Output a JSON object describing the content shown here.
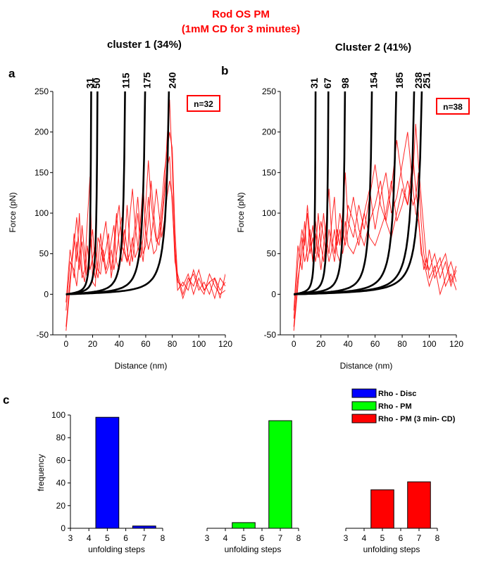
{
  "figure": {
    "title_line1": "Rod OS PM",
    "title_line2": "(1mM CD for 3 minutes)",
    "colors": {
      "trace": "#ff0000",
      "fit": "#000000",
      "disc": "#0000ff",
      "pm": "#00ff00",
      "pm_cd": "#ff0000"
    }
  },
  "chart_data": [
    {
      "id": "a",
      "type": "line",
      "panel_letter": "a",
      "title": "cluster 1 (34%)",
      "xlabel": "Distance (nm)",
      "ylabel": "Force (pN)",
      "xlim": [
        -10,
        120
      ],
      "ylim": [
        -50,
        250
      ],
      "xticks": [
        0,
        20,
        40,
        60,
        80,
        100,
        120
      ],
      "yticks": [
        -50,
        0,
        50,
        100,
        150,
        200,
        250
      ],
      "n_label": "n=32",
      "contour_lengths_aa": [
        31,
        50,
        115,
        175,
        240
      ],
      "contour_labels": [
        "31",
        "50",
        "115",
        "175",
        "240"
      ],
      "wlc_max_extension_nm": [
        20,
        25,
        47,
        63,
        82
      ],
      "series": [
        {
          "x": [
            0,
            3,
            6,
            8,
            10,
            12,
            14,
            16,
            18,
            20,
            22,
            24,
            26,
            28,
            30,
            32,
            34,
            36,
            38,
            40,
            42,
            44,
            46,
            48,
            50,
            52,
            54,
            56,
            58,
            60,
            62,
            64,
            66,
            68,
            70,
            72,
            74,
            76,
            78,
            80,
            82,
            84,
            88,
            92,
            96,
            100,
            104,
            108,
            112,
            116,
            120
          ],
          "y": [
            -40,
            20,
            60,
            95,
            55,
            20,
            30,
            90,
            145,
            15,
            10,
            70,
            60,
            40,
            55,
            75,
            20,
            45,
            90,
            110,
            60,
            50,
            40,
            95,
            130,
            85,
            60,
            45,
            70,
            110,
            165,
            115,
            85,
            65,
            70,
            95,
            130,
            190,
            240,
            160,
            60,
            15,
            10,
            25,
            0,
            20,
            5,
            15,
            -5,
            20,
            10
          ]
        },
        {
          "x": [
            0,
            3,
            6,
            8,
            10,
            12,
            14,
            16,
            18,
            20,
            22,
            24,
            26,
            28,
            30,
            32,
            34,
            36,
            38,
            40,
            42,
            44,
            46,
            48,
            50,
            52,
            54,
            56,
            58,
            60,
            62,
            64,
            66,
            68,
            70,
            72,
            74,
            76,
            78,
            80,
            82,
            84,
            88,
            92,
            96,
            100,
            104,
            108,
            112,
            116,
            120
          ],
          "y": [
            -20,
            40,
            30,
            10,
            45,
            65,
            35,
            20,
            55,
            80,
            35,
            20,
            45,
            70,
            90,
            50,
            30,
            60,
            100,
            60,
            40,
            60,
            110,
            65,
            40,
            70,
            100,
            60,
            40,
            80,
            120,
            70,
            50,
            55,
            80,
            110,
            150,
            175,
            200,
            180,
            80,
            20,
            -5,
            15,
            25,
            5,
            15,
            0,
            20,
            5,
            15
          ]
        },
        {
          "x": [
            0,
            3,
            6,
            8,
            10,
            12,
            14,
            16,
            18,
            20,
            22,
            24,
            26,
            28,
            30,
            32,
            34,
            36,
            38,
            40,
            42,
            44,
            46,
            48,
            50,
            52,
            54,
            56,
            58,
            60,
            62,
            64,
            66,
            68,
            70,
            72,
            74,
            76,
            78,
            80,
            82,
            84,
            88,
            92,
            96,
            100,
            104,
            108,
            112,
            116,
            120
          ],
          "y": [
            -45,
            10,
            75,
            40,
            100,
            30,
            15,
            60,
            30,
            45,
            60,
            30,
            25,
            55,
            30,
            45,
            65,
            85,
            40,
            30,
            55,
            80,
            55,
            35,
            60,
            85,
            120,
            75,
            50,
            60,
            90,
            140,
            100,
            70,
            60,
            85,
            120,
            155,
            170,
            110,
            50,
            5,
            15,
            5,
            30,
            10,
            0,
            25,
            10,
            0,
            5
          ]
        },
        {
          "x": [
            0,
            3,
            6,
            8,
            10,
            12,
            14,
            16,
            18,
            20,
            22,
            24,
            26,
            28,
            30,
            32,
            34,
            36,
            38,
            40,
            42,
            44,
            46,
            48,
            50,
            52,
            54,
            56,
            58,
            60,
            62,
            64,
            66,
            68,
            70,
            72,
            74,
            76,
            78,
            80,
            82,
            84,
            88,
            92,
            96,
            100,
            104,
            108,
            112,
            116,
            120
          ],
          "y": [
            -10,
            55,
            20,
            65,
            30,
            85,
            50,
            25,
            75,
            40,
            20,
            35,
            75,
            45,
            25,
            35,
            55,
            30,
            50,
            75,
            95,
            55,
            40,
            50,
            70,
            45,
            55,
            90,
            135,
            80,
            55,
            70,
            95,
            130,
            100,
            70,
            90,
            120,
            140,
            120,
            40,
            25,
            0,
            20,
            10,
            30,
            5,
            15,
            20,
            -5,
            25
          ]
        }
      ]
    },
    {
      "id": "b",
      "type": "line",
      "panel_letter": "b",
      "title": "Cluster 2 (41%)",
      "xlabel": "Distance (nm)",
      "ylabel": "Force (pN)",
      "xlim": [
        -10,
        120
      ],
      "ylim": [
        -50,
        250
      ],
      "xticks": [
        0,
        20,
        40,
        60,
        80,
        100,
        120
      ],
      "yticks": [
        -50,
        0,
        50,
        100,
        150,
        200,
        250
      ],
      "n_label": "n=38",
      "contour_lengths_aa": [
        31,
        67,
        98,
        154,
        185,
        238,
        251
      ],
      "contour_labels": [
        "31",
        "67",
        "98",
        "154",
        "185",
        "238",
        "251"
      ],
      "wlc_max_extension_nm": [
        17,
        27,
        40,
        61,
        80,
        94,
        100
      ],
      "series": [
        {
          "x": [
            0,
            3,
            6,
            8,
            10,
            12,
            14,
            16,
            18,
            20,
            22,
            24,
            26,
            28,
            30,
            32,
            34,
            36,
            38,
            40,
            44,
            48,
            52,
            56,
            60,
            64,
            68,
            72,
            76,
            80,
            84,
            88,
            90,
            92,
            94,
            96,
            98,
            100,
            104,
            108,
            112,
            116,
            120
          ],
          "y": [
            -30,
            40,
            80,
            60,
            110,
            70,
            40,
            90,
            60,
            30,
            60,
            90,
            130,
            70,
            50,
            80,
            60,
            100,
            150,
            90,
            70,
            110,
            80,
            120,
            160,
            110,
            90,
            130,
            190,
            140,
            110,
            150,
            210,
            160,
            120,
            80,
            40,
            30,
            50,
            20,
            40,
            10,
            30
          ]
        },
        {
          "x": [
            0,
            3,
            6,
            8,
            10,
            12,
            14,
            16,
            18,
            20,
            22,
            24,
            26,
            28,
            30,
            32,
            34,
            36,
            38,
            40,
            44,
            48,
            52,
            56,
            60,
            64,
            68,
            72,
            76,
            80,
            84,
            88,
            90,
            92,
            94,
            96,
            98,
            100,
            104,
            108,
            112,
            116,
            120
          ],
          "y": [
            -40,
            20,
            50,
            90,
            40,
            60,
            85,
            50,
            100,
            60,
            40,
            70,
            50,
            90,
            120,
            60,
            80,
            50,
            70,
            110,
            90,
            60,
            100,
            130,
            80,
            120,
            150,
            100,
            120,
            160,
            200,
            130,
            100,
            90,
            60,
            30,
            45,
            20,
            35,
            0,
            20,
            40,
            15
          ]
        },
        {
          "x": [
            0,
            3,
            6,
            8,
            10,
            12,
            14,
            16,
            18,
            20,
            22,
            24,
            26,
            28,
            30,
            32,
            34,
            36,
            38,
            40,
            44,
            48,
            52,
            56,
            60,
            64,
            68,
            72,
            76,
            80,
            84,
            88,
            90,
            92,
            94,
            96,
            98,
            100,
            104,
            108,
            112,
            116,
            120
          ],
          "y": [
            -20,
            60,
            30,
            70,
            100,
            50,
            70,
            40,
            60,
            90,
            70,
            50,
            80,
            60,
            40,
            70,
            100,
            80,
            60,
            80,
            120,
            80,
            60,
            90,
            110,
            140,
            90,
            70,
            100,
            130,
            110,
            170,
            130,
            100,
            50,
            40,
            25,
            10,
            30,
            45,
            10,
            25,
            5
          ]
        },
        {
          "x": [
            0,
            3,
            6,
            8,
            10,
            12,
            14,
            16,
            18,
            20,
            22,
            24,
            26,
            28,
            30,
            32,
            34,
            36,
            38,
            40,
            44,
            48,
            52,
            56,
            60,
            64,
            68,
            72,
            76,
            80,
            84,
            88,
            90,
            92,
            94,
            96,
            98,
            100,
            104,
            108,
            112,
            116,
            120
          ],
          "y": [
            -45,
            10,
            70,
            40,
            55,
            80,
            40,
            75,
            45,
            65,
            100,
            60,
            40,
            55,
            80,
            50,
            40,
            65,
            90,
            60,
            50,
            70,
            100,
            70,
            60,
            80,
            100,
            140,
            90,
            110,
            140,
            110,
            120,
            150,
            90,
            50,
            30,
            55,
            20,
            35,
            50,
            15,
            35
          ]
        }
      ]
    },
    {
      "id": "c",
      "type": "bar",
      "panel_letter": "c",
      "ylabel": "frequency",
      "xlabel": "unfolding steps",
      "ylim": [
        0,
        100
      ],
      "yticks": [
        0,
        20,
        40,
        60,
        80,
        100
      ],
      "xlim": [
        3,
        8
      ],
      "xticks": [
        3,
        4,
        5,
        6,
        7,
        8
      ],
      "legend": [
        {
          "label": "Rho - Disc",
          "color": "#0000ff"
        },
        {
          "label": "Rho - PM",
          "color": "#00ff00"
        },
        {
          "label": "Rho - PM (3 min- CD)",
          "color": "#ff0000"
        }
      ],
      "groups": [
        {
          "name": "Rho - Disc",
          "color": "#0000ff",
          "x": [
            5,
            7
          ],
          "values": [
            98,
            2
          ]
        },
        {
          "name": "Rho - PM",
          "color": "#00ff00",
          "x": [
            5,
            7
          ],
          "values": [
            5,
            95
          ]
        },
        {
          "name": "Rho - PM (3 min- CD)",
          "color": "#ff0000",
          "x": [
            5,
            7
          ],
          "values": [
            34,
            41
          ]
        }
      ]
    }
  ]
}
